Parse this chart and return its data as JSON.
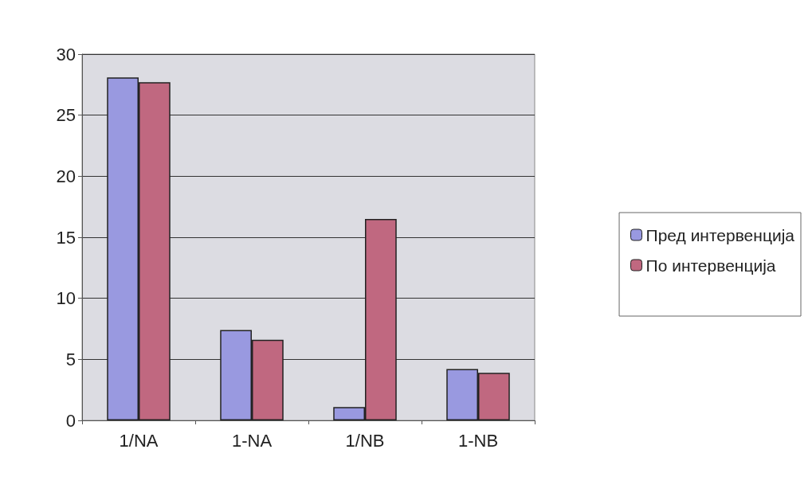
{
  "chart_data": {
    "type": "bar",
    "categories": [
      "1/NA",
      "1-NA",
      "1/NB",
      "1-NB"
    ],
    "series": [
      {
        "name": "Пред интервенција",
        "color": "#9999e0",
        "values": [
          28.1,
          7.4,
          1.1,
          4.2
        ]
      },
      {
        "name": "По интервенција",
        "color": "#c06880",
        "values": [
          27.7,
          6.6,
          16.5,
          3.9
        ]
      }
    ],
    "ylim": [
      0,
      30
    ],
    "yticks": [
      0,
      5,
      10,
      15,
      20,
      25,
      30
    ],
    "grid": "y",
    "legend": "right"
  }
}
